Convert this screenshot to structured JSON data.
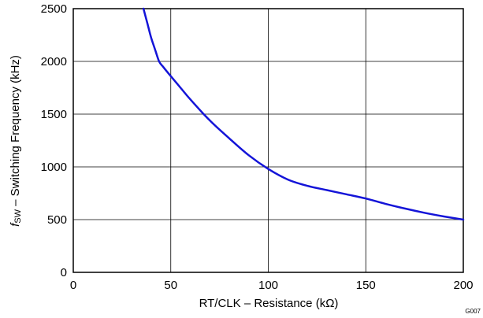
{
  "chart_data": {
    "type": "line",
    "xlabel": "RT/CLK – Resistance (kΩ)",
    "ylabel_italic": "f",
    "ylabel_subscript": "SW",
    "ylabel_rest": " – Switching Frequency (kHz)",
    "xlim": [
      0,
      200
    ],
    "ylim": [
      0,
      2500
    ],
    "xticks": [
      0,
      50,
      100,
      150,
      200
    ],
    "yticks": [
      0,
      500,
      1000,
      1500,
      2000,
      2500
    ],
    "grid": true,
    "line_color": "#1414d8",
    "figure_id": "G007",
    "series": [
      {
        "x": [
          36,
          38,
          40,
          42,
          44,
          46,
          50,
          55,
          60,
          70,
          80,
          90,
          100,
          110,
          120,
          130,
          140,
          150,
          160,
          170,
          180,
          190,
          200
        ],
        "values": [
          2500,
          2360,
          2220,
          2110,
          2000,
          1950,
          1860,
          1750,
          1640,
          1440,
          1270,
          1110,
          980,
          880,
          820,
          780,
          740,
          700,
          650,
          605,
          565,
          530,
          500
        ]
      }
    ]
  }
}
